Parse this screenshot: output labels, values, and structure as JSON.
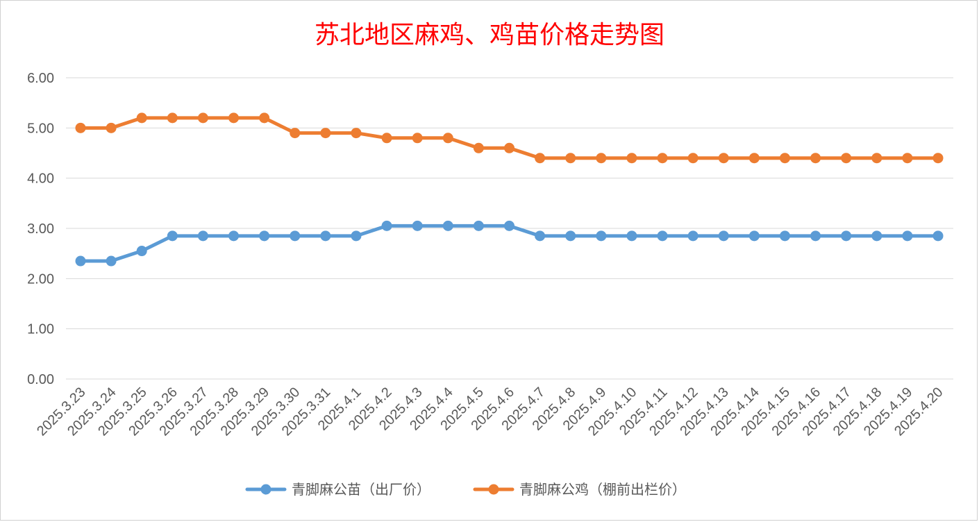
{
  "chart_data": {
    "type": "line",
    "title": "苏北地区麻鸡、鸡苗价格走势图",
    "xlabel": "",
    "ylabel": "",
    "ylim": [
      0,
      6
    ],
    "yticks": [
      "0.00",
      "1.00",
      "2.00",
      "3.00",
      "4.00",
      "5.00",
      "6.00"
    ],
    "grid": true,
    "legend_position": "bottom",
    "categories": [
      "2025.3.23",
      "2025.3.24",
      "2025.3.25",
      "2025.3.26",
      "2025.3.27",
      "2025.3.28",
      "2025.3.29",
      "2025.3.30",
      "2025.3.31",
      "2025.4.1",
      "2025.4.2",
      "2025.4.3",
      "2025.4.4",
      "2025.4.5",
      "2025.4.6",
      "2025.4.7",
      "2025.4.8",
      "2025.4.9",
      "2025.4.10",
      "2025.4.11",
      "2025.4.12",
      "2025.4.13",
      "2025.4.14",
      "2025.4.15",
      "2025.4.16",
      "2025.4.17",
      "2025.4.18",
      "2025.4.19",
      "2025.4.20"
    ],
    "series": [
      {
        "name": "青脚麻公苗（出厂价）",
        "color": "#5b9bd5",
        "values": [
          2.35,
          2.35,
          2.55,
          2.85,
          2.85,
          2.85,
          2.85,
          2.85,
          2.85,
          2.85,
          3.05,
          3.05,
          3.05,
          3.05,
          3.05,
          2.85,
          2.85,
          2.85,
          2.85,
          2.85,
          2.85,
          2.85,
          2.85,
          2.85,
          2.85,
          2.85,
          2.85,
          2.85,
          2.85
        ]
      },
      {
        "name": "青脚麻公鸡（棚前出栏价）",
        "color": "#ed7d31",
        "values": [
          5.0,
          5.0,
          5.2,
          5.2,
          5.2,
          5.2,
          5.2,
          4.9,
          4.9,
          4.9,
          4.8,
          4.8,
          4.8,
          4.6,
          4.6,
          4.4,
          4.4,
          4.4,
          4.4,
          4.4,
          4.4,
          4.4,
          4.4,
          4.4,
          4.4,
          4.4,
          4.4,
          4.4,
          4.4
        ]
      }
    ]
  }
}
